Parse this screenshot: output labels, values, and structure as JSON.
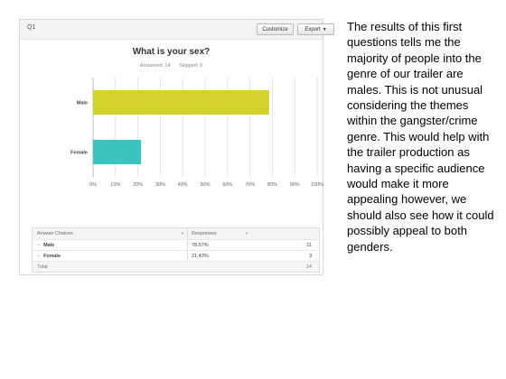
{
  "panel": {
    "question_label": "Q1",
    "customize_label": "Customize",
    "export_label": "Export",
    "title": "What is your sex?",
    "answered": "Answered: 14",
    "skipped": "Skipped: 0"
  },
  "chart_data": {
    "type": "bar",
    "orientation": "horizontal",
    "title": "What is your sex?",
    "categories": [
      "Male",
      "Female"
    ],
    "values": [
      78.57,
      21.43
    ],
    "x_ticks": [
      "0%",
      "10%",
      "20%",
      "30%",
      "40%",
      "50%",
      "60%",
      "70%",
      "80%",
      "90%",
      "100%"
    ],
    "xlim": [
      0,
      100
    ],
    "grid": true,
    "colors": [
      "#d1d32a",
      "#3cc3bf"
    ]
  },
  "table": {
    "headers": [
      "Answer Choices",
      "Responses"
    ],
    "rows": [
      {
        "choice": "Male",
        "percent": "78.57%",
        "count": "11"
      },
      {
        "choice": "Female",
        "percent": "21.43%",
        "count": "3"
      }
    ],
    "total_label": "Total",
    "total_count": "14"
  },
  "note": "The results of this first questions tells me the majority of people into the genre of our trailer are males. This is not unusual considering the themes within the gangster/crime genre. This would help with the trailer production as having a specific audience would make it more appealing however, we should also see how it could possibly appeal to both genders."
}
